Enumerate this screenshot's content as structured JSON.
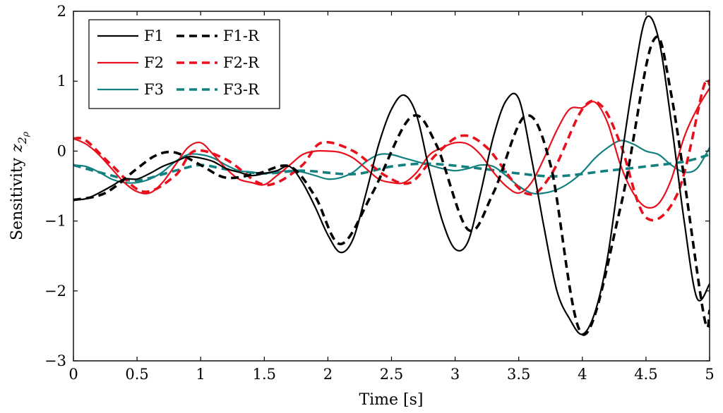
{
  "chart_data": {
    "type": "line",
    "title": "",
    "xlabel": "Time [s]",
    "ylabel": "Sensitivity",
    "ylabel_symbol": "z",
    "ylabel_sub": "2",
    "ylabel_subsub": "ρ",
    "xlim": [
      0,
      5
    ],
    "ylim": [
      -3,
      2
    ],
    "xticks": [
      0,
      0.5,
      1,
      1.5,
      2,
      2.5,
      3,
      3.5,
      4,
      4.5,
      5
    ],
    "xtick_labels": [
      "0",
      "0.5",
      "1",
      "1.5",
      "2",
      "2.5",
      "3",
      "3.5",
      "4",
      "4.5",
      "5"
    ],
    "yticks": [
      -3,
      -2,
      -1,
      0,
      1,
      2
    ],
    "ytick_labels": [
      "−3",
      "−2",
      "−1",
      "0",
      "1",
      "2"
    ],
    "grid": false,
    "legend_position": "top-left",
    "legend_order": [
      "F1",
      "F1-R",
      "F2",
      "F2-R",
      "F3",
      "F3-R"
    ],
    "colors": {
      "F1": "#000000",
      "F2": "#e8101c",
      "F3": "#138080"
    },
    "series": [
      {
        "name": "F1",
        "color": "#000000",
        "dash": "solid",
        "x": [
          0,
          0.1,
          0.2,
          0.3,
          0.4,
          0.5,
          0.6,
          0.7,
          0.8,
          0.9,
          1.0,
          1.1,
          1.2,
          1.3,
          1.4,
          1.5,
          1.6,
          1.7,
          1.8,
          1.9,
          2.0,
          2.1,
          2.2,
          2.3,
          2.4,
          2.5,
          2.6,
          2.7,
          2.8,
          2.9,
          3.0,
          3.1,
          3.2,
          3.3,
          3.4,
          3.5,
          3.6,
          3.7,
          3.8,
          3.9,
          4.0,
          4.1,
          4.2,
          4.3,
          4.4,
          4.5,
          4.6,
          4.7,
          4.8,
          4.9,
          5.0
        ],
        "y": [
          -0.7,
          -0.68,
          -0.6,
          -0.5,
          -0.4,
          -0.4,
          -0.32,
          -0.22,
          -0.15,
          -0.08,
          -0.1,
          -0.15,
          -0.25,
          -0.3,
          -0.35,
          -0.32,
          -0.28,
          -0.22,
          -0.45,
          -0.8,
          -1.2,
          -1.45,
          -1.25,
          -0.6,
          0.1,
          0.6,
          0.8,
          0.5,
          -0.3,
          -1.0,
          -1.4,
          -1.3,
          -0.6,
          0.2,
          0.72,
          0.75,
          -0.1,
          -1.1,
          -2.0,
          -2.4,
          -2.62,
          -2.3,
          -1.5,
          -0.2,
          1.0,
          1.9,
          1.6,
          0.4,
          -1.0,
          -2.1,
          -1.9
        ]
      },
      {
        "name": "F1-R",
        "color": "#000000",
        "dash": "dashed",
        "x": [
          0,
          0.25,
          0.5,
          0.65,
          0.8,
          1.0,
          1.2,
          1.45,
          1.7,
          1.9,
          2.1,
          2.35,
          2.65,
          2.85,
          3.1,
          3.3,
          3.55,
          3.75,
          4.0,
          4.3,
          4.55,
          4.7,
          4.95,
          5.0
        ],
        "y": [
          -0.7,
          -0.6,
          -0.25,
          -0.06,
          -0.02,
          -0.2,
          -0.38,
          -0.32,
          -0.22,
          -0.65,
          -1.33,
          -0.6,
          0.48,
          0.1,
          -1.12,
          -0.6,
          0.5,
          -0.2,
          -2.62,
          -0.8,
          1.55,
          0.8,
          -2.3,
          -2.28
        ]
      },
      {
        "name": "F2",
        "color": "#e8101c",
        "dash": "solid",
        "x": [
          0,
          0.1,
          0.2,
          0.3,
          0.4,
          0.5,
          0.6,
          0.7,
          0.8,
          0.9,
          1.0,
          1.1,
          1.2,
          1.3,
          1.4,
          1.5,
          1.6,
          1.7,
          1.8,
          1.9,
          2.0,
          2.1,
          2.2,
          2.3,
          2.4,
          2.5,
          2.6,
          2.7,
          2.8,
          2.9,
          3.0,
          3.1,
          3.2,
          3.3,
          3.4,
          3.5,
          3.6,
          3.7,
          3.8,
          3.9,
          4.0,
          4.1,
          4.2,
          4.3,
          4.4,
          4.5,
          4.6,
          4.7,
          4.8,
          4.9,
          5.0
        ],
        "y": [
          0.18,
          0.1,
          -0.05,
          -0.25,
          -0.45,
          -0.58,
          -0.6,
          -0.45,
          -0.2,
          0.05,
          0.12,
          -0.05,
          -0.25,
          -0.4,
          -0.45,
          -0.48,
          -0.35,
          -0.2,
          -0.05,
          0.0,
          0.0,
          -0.02,
          -0.1,
          -0.25,
          -0.4,
          -0.45,
          -0.45,
          -0.3,
          -0.05,
          0.05,
          0.12,
          0.1,
          -0.05,
          -0.3,
          -0.5,
          -0.6,
          -0.45,
          -0.1,
          0.3,
          0.6,
          0.62,
          0.7,
          0.4,
          -0.2,
          -0.6,
          -0.8,
          -0.75,
          -0.4,
          0.2,
          0.6,
          0.9
        ]
      },
      {
        "name": "F2-R",
        "color": "#e8101c",
        "dash": "dashed",
        "x": [
          0,
          0.1,
          0.3,
          0.55,
          0.8,
          0.95,
          1.2,
          1.45,
          1.6,
          1.8,
          1.95,
          2.2,
          2.45,
          2.65,
          2.85,
          3.05,
          3.25,
          3.55,
          3.75,
          4.0,
          4.15,
          4.3,
          4.5,
          4.75,
          4.95,
          5.0
        ],
        "y": [
          0.18,
          0.15,
          -0.2,
          -0.58,
          -0.35,
          0.0,
          -0.12,
          -0.45,
          -0.45,
          -0.2,
          0.12,
          0.0,
          -0.35,
          -0.45,
          -0.05,
          0.22,
          0.05,
          -0.6,
          -0.35,
          0.6,
          0.65,
          0.1,
          -0.95,
          -0.6,
          0.9,
          0.95
        ]
      },
      {
        "name": "F3",
        "color": "#138080",
        "dash": "solid",
        "x": [
          0,
          0.1,
          0.2,
          0.3,
          0.4,
          0.5,
          0.6,
          0.7,
          0.8,
          0.9,
          1.0,
          1.1,
          1.2,
          1.3,
          1.4,
          1.5,
          1.6,
          1.7,
          1.8,
          1.9,
          2.0,
          2.1,
          2.2,
          2.3,
          2.4,
          2.5,
          2.6,
          2.7,
          2.8,
          2.9,
          3.0,
          3.1,
          3.2,
          3.3,
          3.4,
          3.5,
          3.6,
          3.7,
          3.8,
          3.9,
          4.0,
          4.1,
          4.2,
          4.3,
          4.4,
          4.5,
          4.6,
          4.7,
          4.8,
          4.9,
          5.0
        ],
        "y": [
          -0.2,
          -0.22,
          -0.3,
          -0.4,
          -0.45,
          -0.45,
          -0.4,
          -0.3,
          -0.15,
          -0.05,
          -0.05,
          -0.1,
          -0.2,
          -0.28,
          -0.3,
          -0.32,
          -0.3,
          -0.28,
          -0.3,
          -0.35,
          -0.4,
          -0.38,
          -0.3,
          -0.15,
          -0.05,
          -0.05,
          -0.1,
          -0.15,
          -0.2,
          -0.25,
          -0.28,
          -0.25,
          -0.2,
          -0.22,
          -0.35,
          -0.5,
          -0.6,
          -0.6,
          -0.55,
          -0.45,
          -0.3,
          -0.1,
          0.05,
          0.15,
          0.1,
          0.0,
          -0.05,
          -0.2,
          -0.3,
          -0.25,
          0.05
        ]
      },
      {
        "name": "F3-R",
        "color": "#138080",
        "dash": "dashed",
        "x": [
          0,
          0.3,
          0.5,
          0.8,
          1.0,
          1.2,
          1.5,
          1.8,
          2.2,
          2.5,
          2.8,
          3.2,
          3.5,
          3.8,
          4.2,
          4.5,
          4.8,
          5.0
        ],
        "y": [
          -0.2,
          -0.35,
          -0.42,
          -0.28,
          -0.2,
          -0.26,
          -0.32,
          -0.28,
          -0.33,
          -0.22,
          -0.18,
          -0.25,
          -0.32,
          -0.36,
          -0.28,
          -0.22,
          -0.15,
          -0.05
        ]
      }
    ]
  }
}
